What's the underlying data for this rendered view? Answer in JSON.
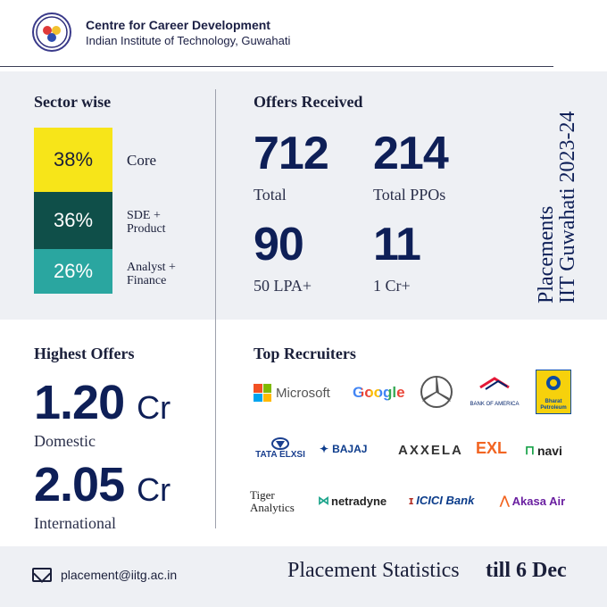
{
  "header": {
    "org_name": "Centre for Career Development",
    "institute": "Indian Institute of Technology, Guwahati"
  },
  "sector": {
    "title": "Sector wise",
    "items": [
      {
        "percent": "38%",
        "label": "Core",
        "color": "#f7e519"
      },
      {
        "percent": "36%",
        "label": "SDE + Product",
        "label_line1": "SDE +",
        "label_line2": "Product",
        "color": "#0f4f49"
      },
      {
        "percent": "26%",
        "label": "Analyst + Finance",
        "label_line1": "Analyst +",
        "label_line2": "Finance",
        "color": "#2aa6a0"
      }
    ]
  },
  "offers": {
    "title": "Offers Received",
    "total": {
      "value": "712",
      "label": "Total"
    },
    "ppos": {
      "value": "214",
      "label": "Total PPOs"
    },
    "lpa50": {
      "value": "90",
      "label": "50 LPA+"
    },
    "cr1": {
      "value": "11",
      "label": "1 Cr+"
    }
  },
  "side_title": {
    "line1": "Placements",
    "line2": "IIT Guwahati 2023-24"
  },
  "highest": {
    "title": "Highest Offers",
    "domestic": {
      "value": "1.20",
      "unit": "Cr",
      "label": "Domestic"
    },
    "international": {
      "value": "2.05",
      "unit": "Cr",
      "label": "International"
    }
  },
  "recruiters": {
    "title": "Top Recruiters",
    "logos": [
      "Microsoft",
      "Google",
      "Mercedes-Benz",
      "BANK OF AMERICA",
      "Bharat Petroleum",
      "TATA ELXSI",
      "BAJAJ",
      "AXXELA",
      "EXL",
      "navi",
      "Tiger Analytics",
      "netradyne",
      "ICICI Bank",
      "Akasa Air"
    ]
  },
  "footer": {
    "email": "placement@iitg.ac.in",
    "statement": "Placement Statistics",
    "date": "till 6 Dec"
  }
}
